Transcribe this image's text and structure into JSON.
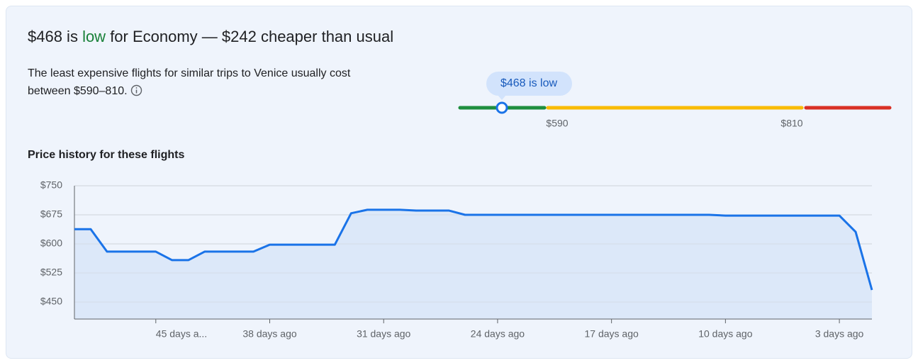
{
  "header": {
    "title_parts": [
      "$468 is ",
      "low",
      " for Economy — $242 cheaper than usual"
    ],
    "description": "The least expensive flights for similar trips to Venice usually cost between $590–810.",
    "range_bubble": "$468 is low",
    "range_labels": [
      "$590",
      "$810"
    ]
  },
  "chart_data": {
    "type": "area-line",
    "title": "Price history for these flights",
    "x": [
      50,
      49,
      48,
      47,
      46,
      45,
      44,
      43,
      42,
      41,
      40,
      39,
      38,
      37,
      36,
      35,
      34,
      33,
      32,
      31,
      30,
      29,
      28,
      27,
      26,
      25,
      24,
      23,
      22,
      21,
      20,
      19,
      18,
      17,
      16,
      15,
      14,
      13,
      12,
      11,
      10,
      9,
      8,
      7,
      6,
      5,
      4,
      3,
      2,
      1
    ],
    "series": [
      {
        "name": "Price",
        "color": "#1a73e8",
        "values": [
          638,
          638,
          580,
          580,
          580,
          580,
          558,
          558,
          580,
          580,
          580,
          580,
          598,
          598,
          598,
          598,
          598,
          679,
          688,
          688,
          688,
          686,
          686,
          686,
          675,
          675,
          675,
          675,
          675,
          675,
          675,
          675,
          675,
          675,
          675,
          675,
          675,
          675,
          675,
          675,
          673,
          673,
          673,
          673,
          673,
          673,
          673,
          673,
          631,
          481
        ]
      }
    ],
    "area_color": "#dce8f9",
    "xlim": [
      50,
      1
    ],
    "xticks": [
      {
        "value": 45,
        "label": "45 days a..."
      },
      {
        "value": 38,
        "label": "38 days ago"
      },
      {
        "value": 31,
        "label": "31 days ago"
      },
      {
        "value": 24,
        "label": "24 days ago"
      },
      {
        "value": 17,
        "label": "17 days ago"
      },
      {
        "value": 10,
        "label": "10 days ago"
      },
      {
        "value": 3,
        "label": "3 days ago"
      }
    ],
    "ylim": [
      406,
      750
    ],
    "yticks": [
      {
        "value": 450,
        "label": "$450"
      },
      {
        "value": 525,
        "label": "$525"
      },
      {
        "value": 600,
        "label": "$600"
      },
      {
        "value": 675,
        "label": "$675"
      },
      {
        "value": 750,
        "label": "$750"
      }
    ],
    "grid": true
  }
}
